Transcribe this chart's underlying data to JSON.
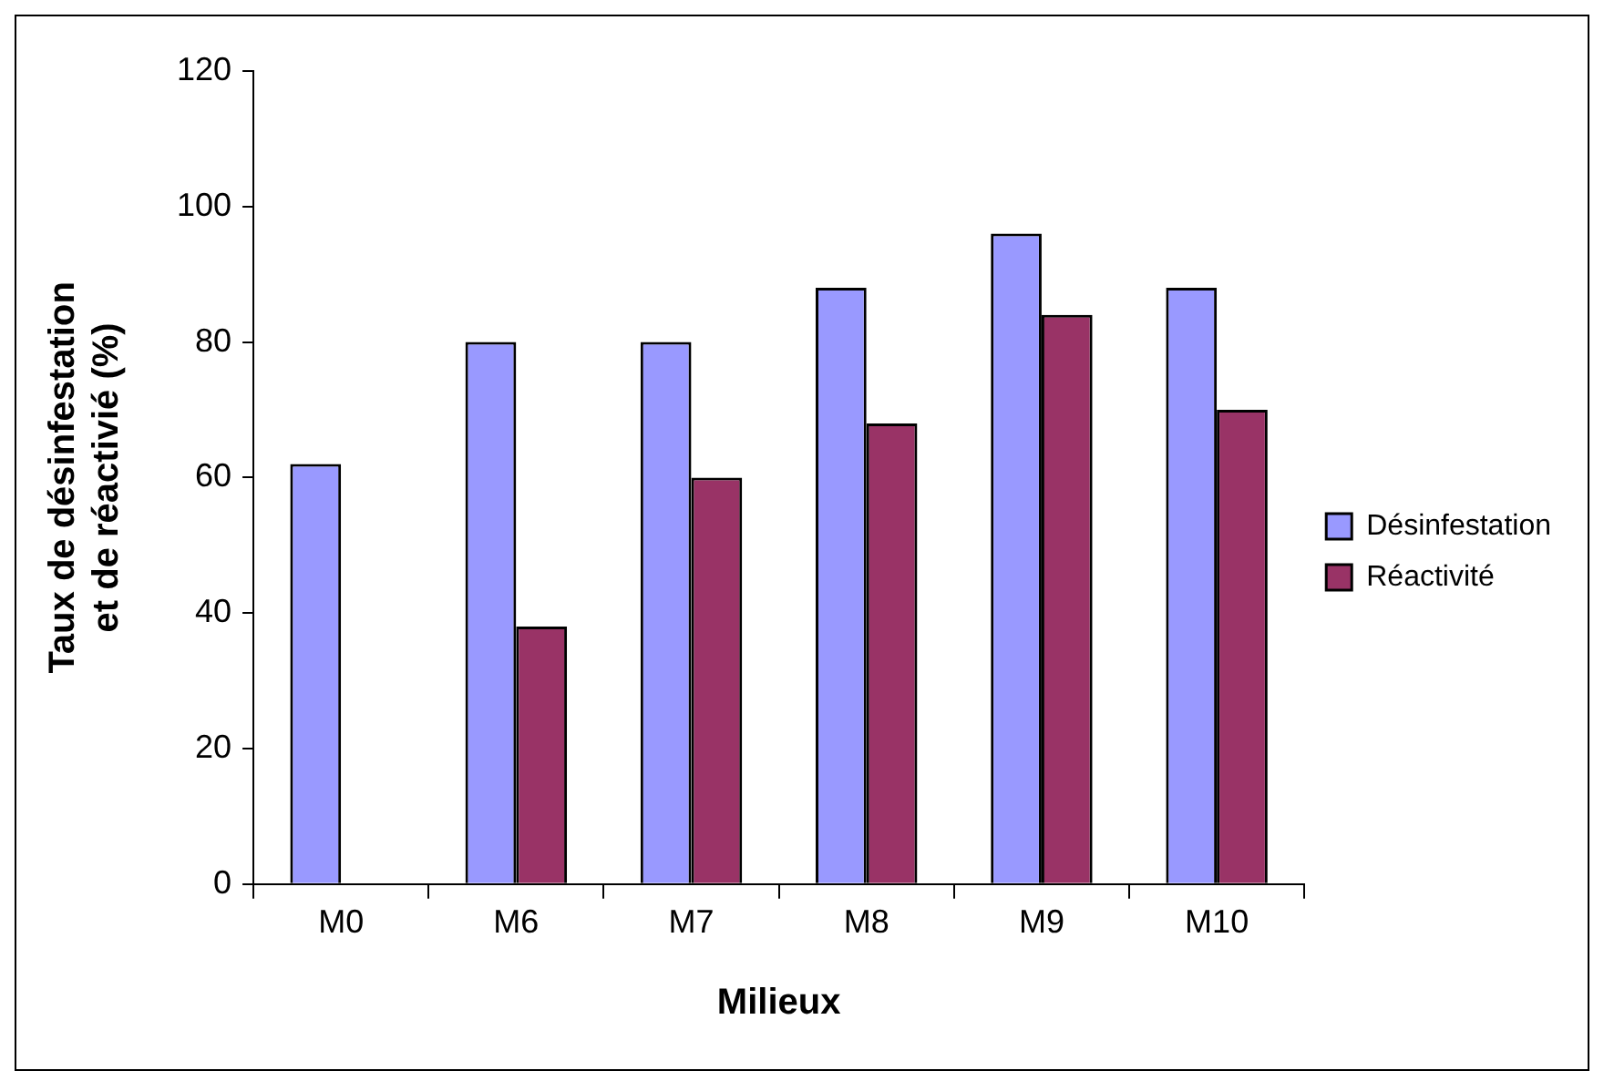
{
  "chart_data": {
    "type": "bar",
    "xlabel": "Milieux",
    "ylabel": "Taux de désinfestation et de réactivié (%)",
    "categories": [
      "M0",
      "M6",
      "M7",
      "M8",
      "M9",
      "M10"
    ],
    "series": [
      {
        "name": "Désinfestation",
        "color": "#9999ff",
        "values": [
          62,
          80,
          80,
          88,
          96,
          88
        ]
      },
      {
        "name": "Réactivité",
        "color": "#993366",
        "values": [
          null,
          38,
          60,
          68,
          84,
          70
        ]
      }
    ],
    "ylim": [
      0,
      120
    ],
    "yticks": [
      0,
      20,
      40,
      60,
      80,
      100,
      120
    ],
    "grid": false,
    "legend": "right"
  }
}
